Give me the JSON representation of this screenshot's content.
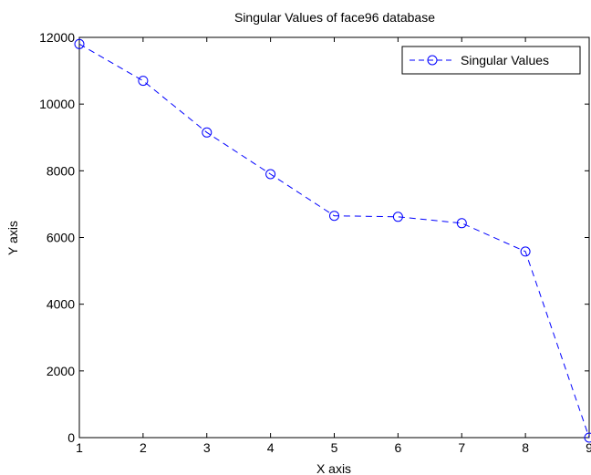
{
  "chart_data": {
    "type": "line",
    "title": "Singular Values of face96 database",
    "xlabel": "X axis",
    "ylabel": "Y axis",
    "xlim": [
      1,
      9
    ],
    "ylim": [
      0,
      12000
    ],
    "xticks": [
      "1",
      "2",
      "3",
      "4",
      "5",
      "6",
      "7",
      "8",
      "9"
    ],
    "yticks": [
      "0",
      "2000",
      "4000",
      "6000",
      "8000",
      "10000",
      "12000"
    ],
    "grid": false,
    "legend_position": "top-right",
    "series": [
      {
        "name": "Singular Values",
        "color": "#0000ff",
        "line_style": "dashed",
        "marker": "circle",
        "x": [
          1,
          2,
          3,
          4,
          5,
          6,
          7,
          8,
          9
        ],
        "y": [
          11800,
          10700,
          9150,
          7900,
          6650,
          6620,
          6430,
          5580,
          0
        ]
      }
    ]
  }
}
